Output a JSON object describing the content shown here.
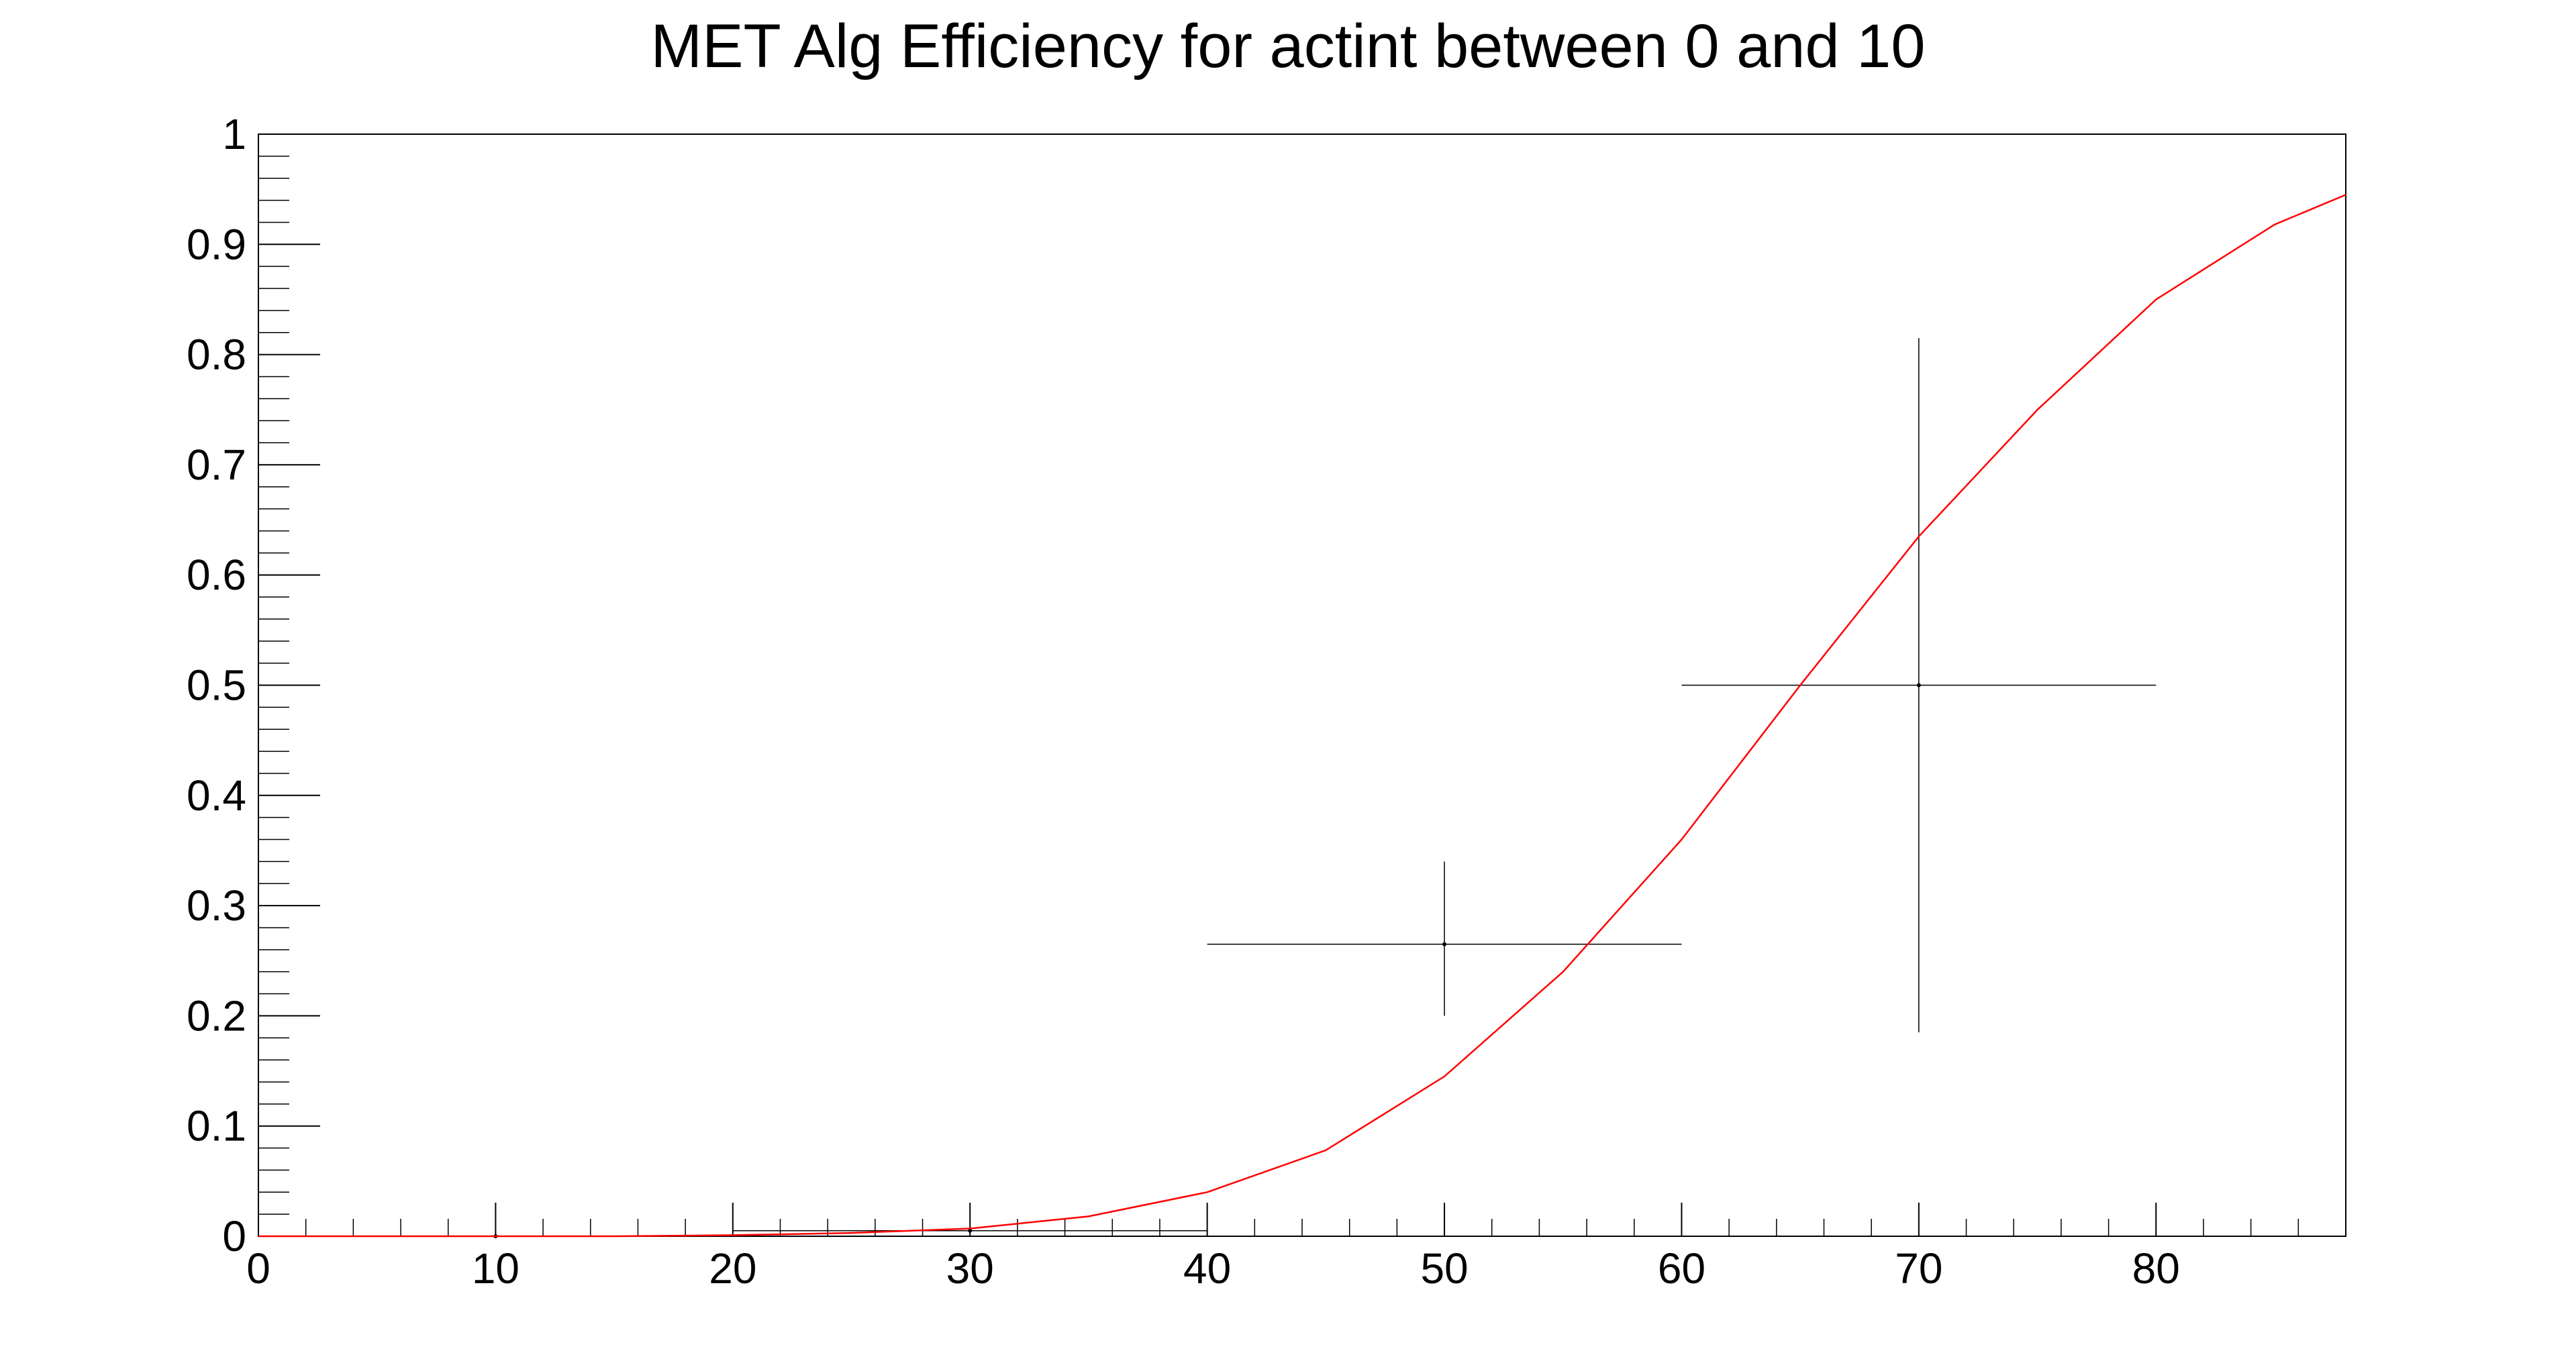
{
  "chart_data": {
    "type": "scatter",
    "title": "MET Alg Efficiency for actint between 0 and 10",
    "xlabel": "",
    "ylabel": "",
    "xlim": [
      0,
      88
    ],
    "ylim": [
      0,
      1
    ],
    "x_ticks": [
      0,
      10,
      20,
      30,
      40,
      50,
      60,
      70,
      80
    ],
    "x_tick_labels": [
      "0",
      "10",
      "20",
      "30",
      "40",
      "50",
      "60",
      "70",
      "80"
    ],
    "y_ticks": [
      0,
      0.1,
      0.2,
      0.3,
      0.4,
      0.5,
      0.6,
      0.7,
      0.8,
      0.9,
      1
    ],
    "y_tick_labels": [
      "0",
      "0.1",
      "0.2",
      "0.3",
      "0.4",
      "0.5",
      "0.6",
      "0.7",
      "0.8",
      "0.9",
      "1"
    ],
    "grid": false,
    "points": [
      {
        "x": 10,
        "y": 0,
        "xerr": 10,
        "ylow": 0,
        "yhigh": 0
      },
      {
        "x": 30,
        "y": 0.005,
        "xerr": 10,
        "ylow": 0.001,
        "yhigh": 0.01
      },
      {
        "x": 50,
        "y": 0.265,
        "xerr": 10,
        "ylow": 0.2,
        "yhigh": 0.34
      },
      {
        "x": 70,
        "y": 0.5,
        "xerr": 10,
        "ylow": 0.185,
        "yhigh": 0.815
      }
    ],
    "fit_curve": {
      "color": "#ff0000",
      "points": [
        [
          0,
          0
        ],
        [
          10,
          0
        ],
        [
          15,
          0
        ],
        [
          20,
          0.001
        ],
        [
          25,
          0.003
        ],
        [
          30,
          0.007
        ],
        [
          35,
          0.018
        ],
        [
          40,
          0.04
        ],
        [
          45,
          0.078
        ],
        [
          50,
          0.145
        ],
        [
          55,
          0.24
        ],
        [
          60,
          0.36
        ],
        [
          65,
          0.5
        ],
        [
          70,
          0.635
        ],
        [
          75,
          0.75
        ],
        [
          80,
          0.85
        ],
        [
          85,
          0.918
        ],
        [
          88,
          0.945
        ]
      ]
    },
    "colors": {
      "points": "#000000",
      "fit": "#ff0000",
      "frame": "#000000"
    }
  }
}
